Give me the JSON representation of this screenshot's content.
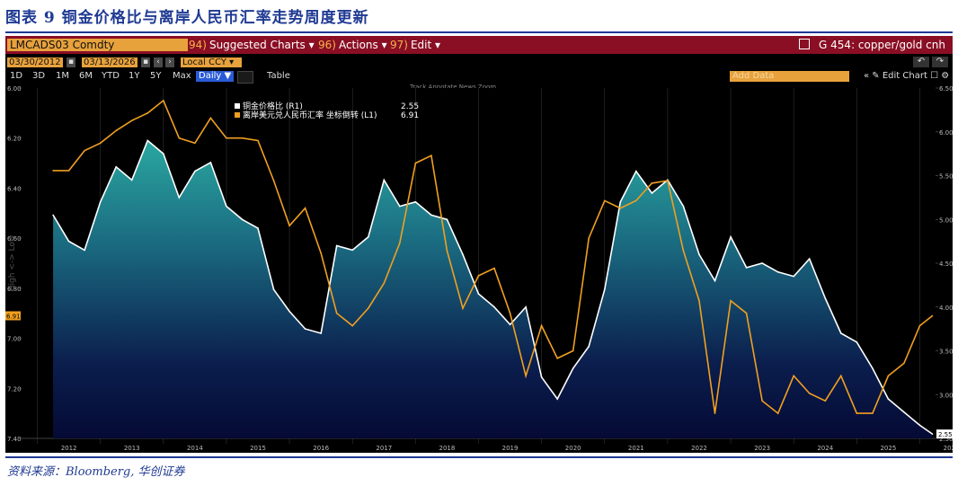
{
  "figure": {
    "title": "图表 9 铜金价格比与离岸人民币汇率走势周度更新",
    "source": "资料来源：Bloomberg, 华创证券"
  },
  "terminal": {
    "ticker": "LMCADS03 Comdty",
    "menu": [
      {
        "num": "94)",
        "label": "Suggested Charts"
      },
      {
        "num": "96)",
        "label": "Actions"
      },
      {
        "num": "97)",
        "label": "Edit"
      }
    ],
    "chart_id": "G 454: copper/gold cnh",
    "start_date": "03/30/2012",
    "end_date": "03/13/2026",
    "currency": "Local CCY",
    "periods": [
      "1D",
      "3D",
      "1M",
      "6M",
      "YTD",
      "1Y",
      "5Y",
      "Max"
    ],
    "selected_period": "Daily",
    "table_label": "Table",
    "add_data_placeholder": "Add Data",
    "edit_chart_label": "Edit Chart",
    "toolbar_hint": "Track  Annotate  News  Zoom",
    "colors": {
      "copper_gold": "#ffffff",
      "usdcnh": "#f0a020",
      "accent": "#e8a23c",
      "brand_red": "#8a0f24"
    }
  },
  "chart_data": {
    "type": "line",
    "title": "copper/gold cnh",
    "x_labels": [
      "2012",
      "2013",
      "2014",
      "2015",
      "2016",
      "2017",
      "2018",
      "2019",
      "2020",
      "2021",
      "2022",
      "2023",
      "2024",
      "2025",
      "2026"
    ],
    "left_axis": {
      "label": "High <-> Low",
      "ticks": [
        "6.00",
        "6.20",
        "6.40",
        "6.60",
        "6.80",
        "7.00",
        "7.20",
        "7.40"
      ],
      "range": [
        6.0,
        7.4
      ],
      "inverted": true
    },
    "right_axis": {
      "ticks": [
        "6.50",
        "6.00",
        "5.50",
        "5.00",
        "4.50",
        "4.00",
        "3.50",
        "3.00",
        "2.50"
      ],
      "range": [
        2.5,
        6.5
      ]
    },
    "series": [
      {
        "name": "铜金价格比 (R1)",
        "last_label": "2.55",
        "axis": "right",
        "last": 2.55,
        "x": [
          2012.25,
          2012.5,
          2012.75,
          2013.0,
          2013.25,
          2013.5,
          2013.75,
          2014.0,
          2014.25,
          2014.5,
          2014.75,
          2015.0,
          2015.25,
          2015.5,
          2015.75,
          2016.0,
          2016.25,
          2016.5,
          2016.75,
          2017.0,
          2017.25,
          2017.5,
          2017.75,
          2018.0,
          2018.25,
          2018.5,
          2018.75,
          2019.0,
          2019.25,
          2019.5,
          2019.75,
          2020.0,
          2020.25,
          2020.5,
          2020.75,
          2021.0,
          2021.25,
          2021.5,
          2021.75,
          2022.0,
          2022.25,
          2022.5,
          2022.75,
          2023.0,
          2023.25,
          2023.5,
          2023.75,
          2024.0,
          2024.25,
          2024.5,
          2024.75,
          2025.0,
          2025.25,
          2025.5,
          2025.75,
          2026.0,
          2026.2
        ],
        "y": [
          5.05,
          4.75,
          4.65,
          5.2,
          5.6,
          5.45,
          5.9,
          5.75,
          5.25,
          5.55,
          5.65,
          5.15,
          5.0,
          4.9,
          4.2,
          3.95,
          3.75,
          3.7,
          4.7,
          4.65,
          4.8,
          5.45,
          5.15,
          5.2,
          5.05,
          5.0,
          4.6,
          4.15,
          4.0,
          3.8,
          4.0,
          3.2,
          2.95,
          3.3,
          3.55,
          4.2,
          5.2,
          5.55,
          5.3,
          5.45,
          5.15,
          4.6,
          4.3,
          4.8,
          4.45,
          4.5,
          4.4,
          4.35,
          4.55,
          4.1,
          3.7,
          3.6,
          3.3,
          2.95,
          2.8,
          2.65,
          2.55
        ]
      },
      {
        "name": "离岸美元兑人民币汇率 坐标倒转 (L1)",
        "last_label": "6.91",
        "axis": "left",
        "last": 6.91,
        "x": [
          2012.25,
          2012.5,
          2012.75,
          2013.0,
          2013.25,
          2013.5,
          2013.75,
          2014.0,
          2014.25,
          2014.5,
          2014.75,
          2015.0,
          2015.25,
          2015.5,
          2015.75,
          2016.0,
          2016.25,
          2016.5,
          2016.75,
          2017.0,
          2017.25,
          2017.5,
          2017.75,
          2018.0,
          2018.25,
          2018.5,
          2018.75,
          2019.0,
          2019.25,
          2019.5,
          2019.75,
          2020.0,
          2020.25,
          2020.5,
          2020.75,
          2021.0,
          2021.25,
          2021.5,
          2021.75,
          2022.0,
          2022.25,
          2022.5,
          2022.75,
          2023.0,
          2023.25,
          2023.5,
          2023.75,
          2024.0,
          2024.25,
          2024.5,
          2024.75,
          2025.0,
          2025.25,
          2025.5,
          2025.75,
          2026.0,
          2026.2
        ],
        "y": [
          6.33,
          6.33,
          6.25,
          6.22,
          6.17,
          6.13,
          6.1,
          6.05,
          6.2,
          6.22,
          6.12,
          6.2,
          6.2,
          6.21,
          6.37,
          6.55,
          6.48,
          6.66,
          6.9,
          6.95,
          6.88,
          6.78,
          6.62,
          6.3,
          6.27,
          6.65,
          6.88,
          6.75,
          6.72,
          6.9,
          7.15,
          6.95,
          7.08,
          7.05,
          6.6,
          6.45,
          6.48,
          6.45,
          6.38,
          6.37,
          6.65,
          6.85,
          7.3,
          6.85,
          6.9,
          7.25,
          7.3,
          7.15,
          7.22,
          7.25,
          7.15,
          7.3,
          7.3,
          7.15,
          7.1,
          6.95,
          6.91
        ]
      }
    ]
  }
}
